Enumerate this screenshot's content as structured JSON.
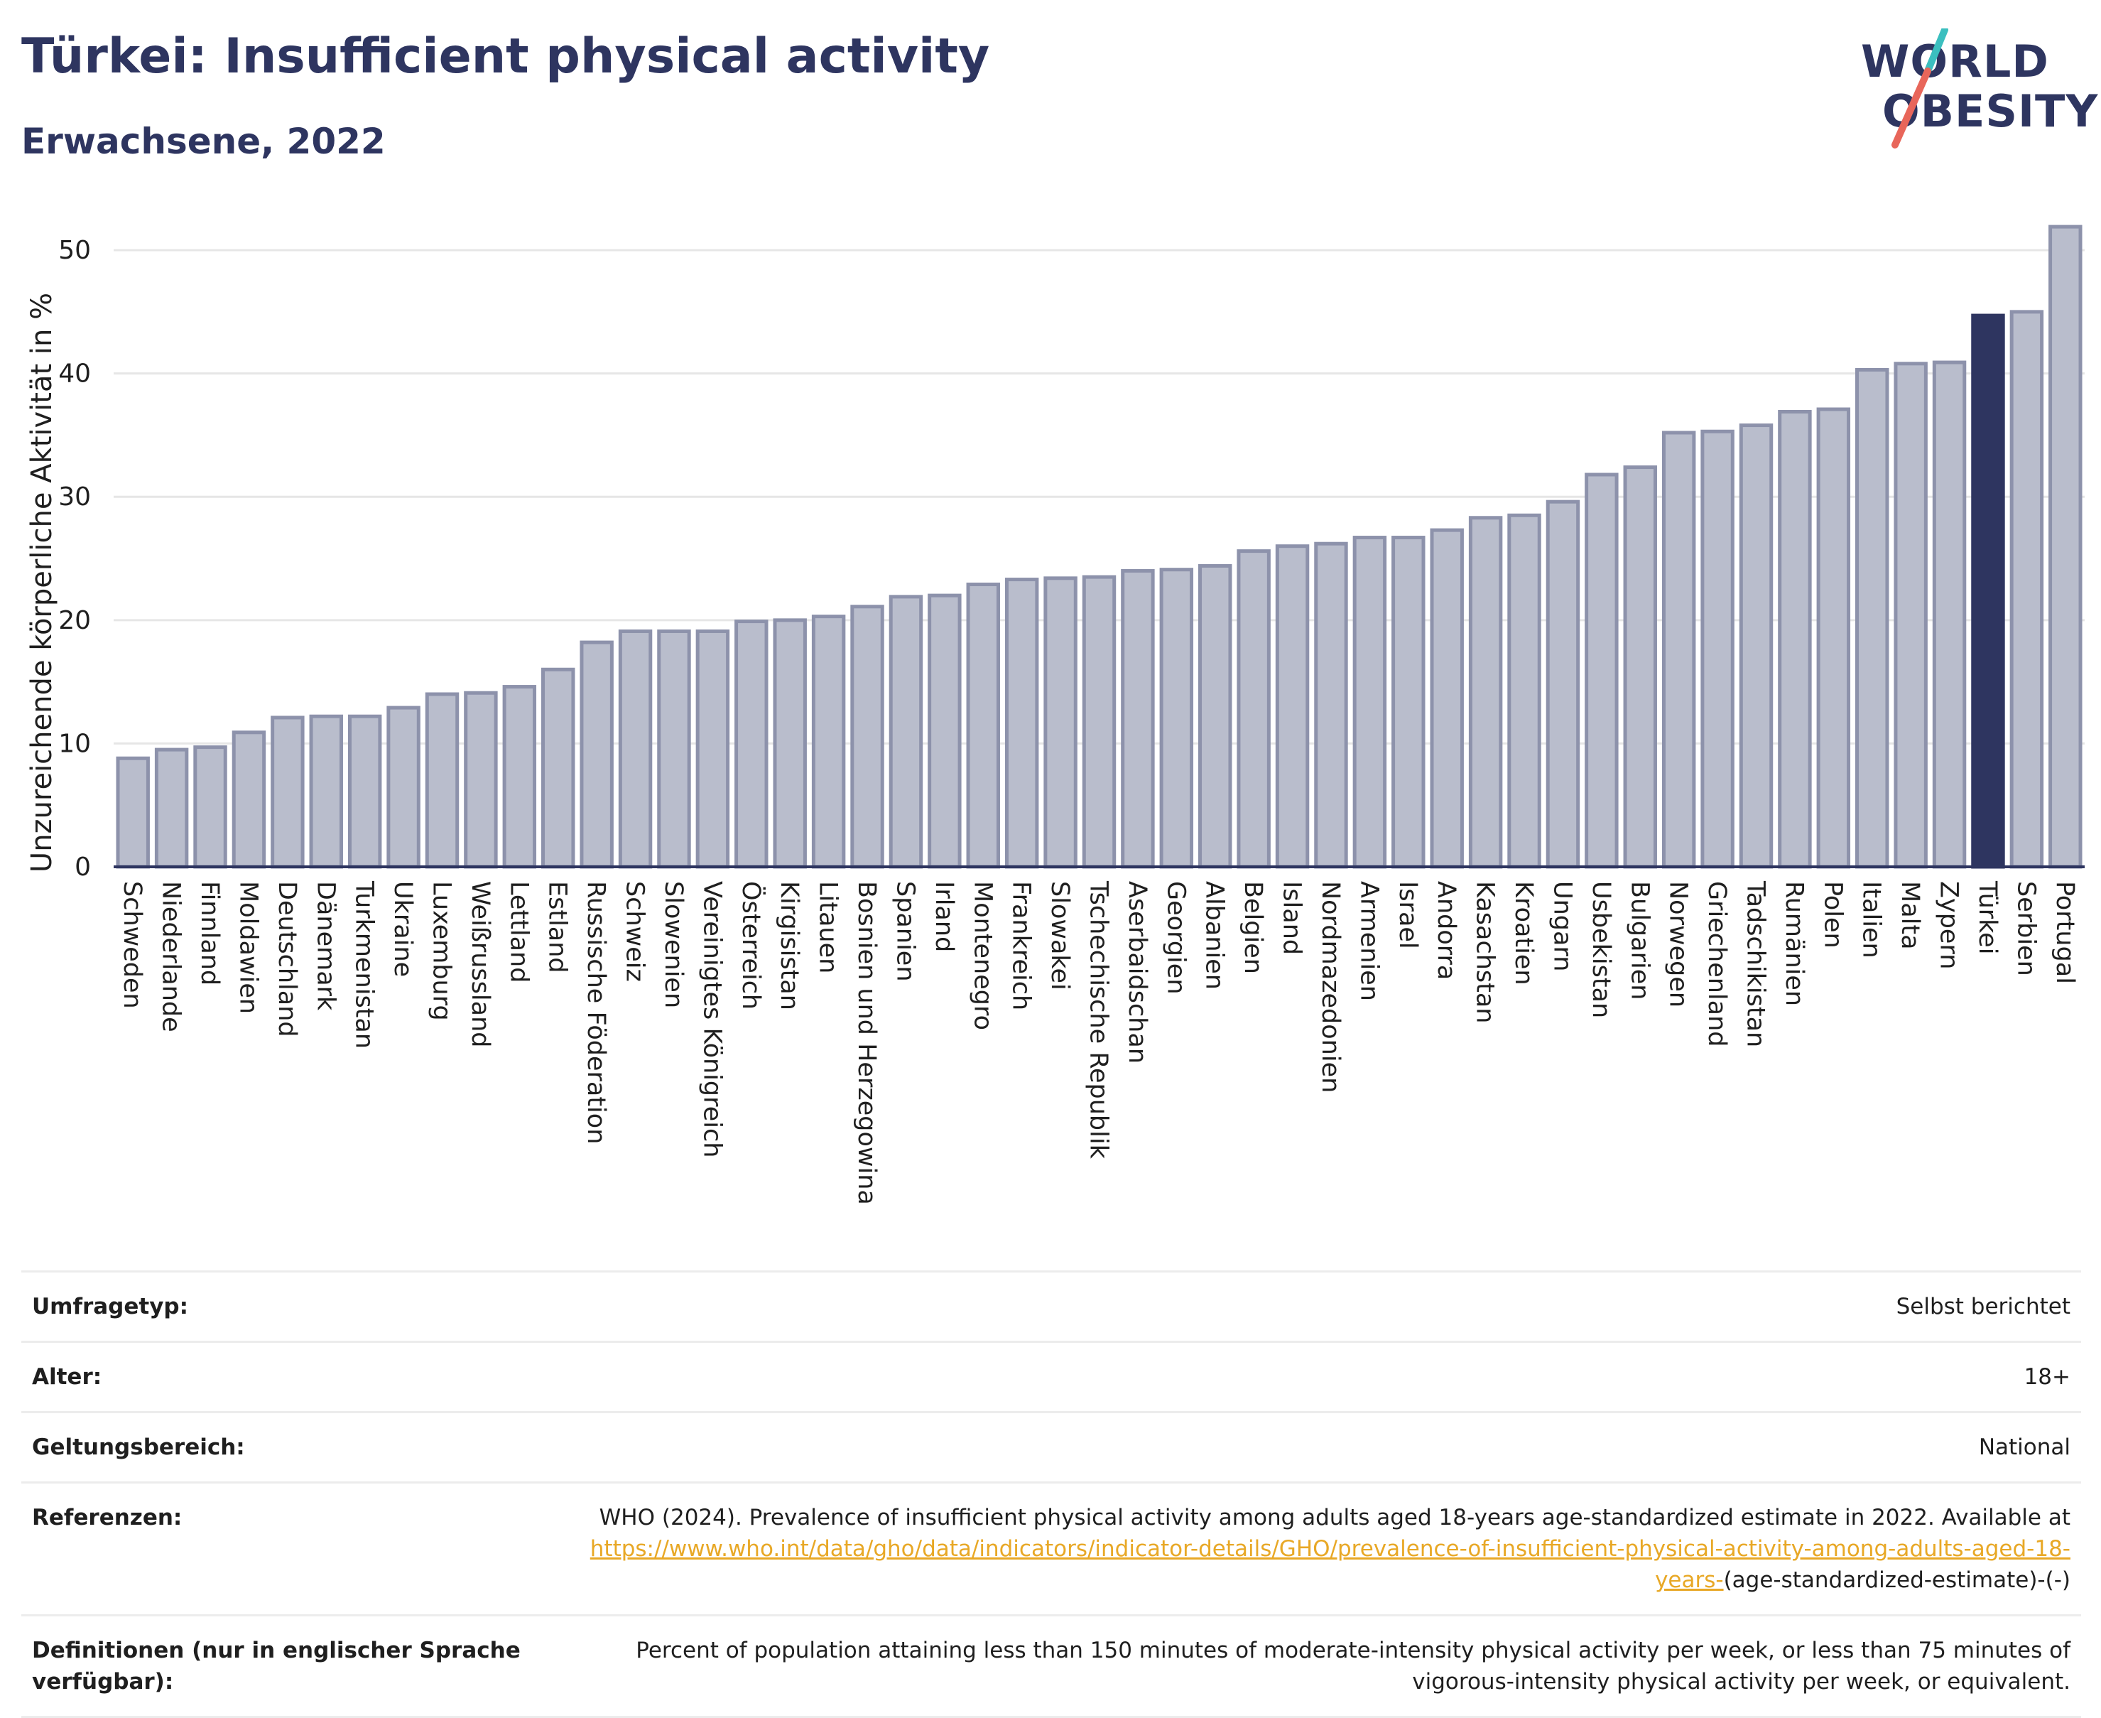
{
  "header": {
    "title": "Türkei: Insufficient physical activity",
    "subtitle": "Erwachsene, 2022"
  },
  "logo": {
    "line1": "WORLD",
    "line2": "OBESITY",
    "colors": {
      "text": "#2e3560",
      "slash_top": "#3bbfbf",
      "slash_bottom": "#e8665a"
    }
  },
  "chart_data": {
    "type": "bar",
    "ylabel": "Unzureichende körperliche Aktivität in %",
    "xlabel": "",
    "ylim": [
      0,
      53
    ],
    "yticks": [
      0,
      10,
      20,
      30,
      40,
      50
    ],
    "grid": true,
    "highlight": "Türkei",
    "colors": {
      "bar": "#b9bdcc",
      "bar_edge": "#8d92ab",
      "highlight": "#2e3560",
      "grid": "#e6e6e6",
      "axis": "#2e3560"
    },
    "categories": [
      "Schweden",
      "Niederlande",
      "Finnland",
      "Moldawien",
      "Deutschland",
      "Dänemark",
      "Turkmenistan",
      "Ukraine",
      "Luxemburg",
      "Weißrussland",
      "Lettland",
      "Estland",
      "Russische Föderation",
      "Schweiz",
      "Slowenien",
      "Vereinigtes Königreich",
      "Österreich",
      "Kirgisistan",
      "Litauen",
      "Bosnien und Herzegowina",
      "Spanien",
      "Irland",
      "Montenegro",
      "Frankreich",
      "Slowakei",
      "Tschechische Republik",
      "Aserbaidschan",
      "Georgien",
      "Albanien",
      "Belgien",
      "Island",
      "Nordmazedonien",
      "Armenien",
      "Israel",
      "Andorra",
      "Kasachstan",
      "Kroatien",
      "Ungarn",
      "Usbekistan",
      "Bulgarien",
      "Norwegen",
      "Griechenland",
      "Tadschikistan",
      "Rumänien",
      "Polen",
      "Italien",
      "Malta",
      "Zypern",
      "Türkei",
      "Serbien",
      "Portugal"
    ],
    "values": [
      8.8,
      9.5,
      9.7,
      10.9,
      12.1,
      12.2,
      12.2,
      12.9,
      14.0,
      14.1,
      14.6,
      16.0,
      18.2,
      19.1,
      19.1,
      19.1,
      19.9,
      20.0,
      20.3,
      21.1,
      21.9,
      22.0,
      22.9,
      23.3,
      23.4,
      23.5,
      24.0,
      24.1,
      24.4,
      25.6,
      26.0,
      26.2,
      26.7,
      26.7,
      27.3,
      28.3,
      28.5,
      29.6,
      31.8,
      32.4,
      35.2,
      35.3,
      35.8,
      36.9,
      37.1,
      40.3,
      40.8,
      40.9,
      44.7,
      45.0,
      51.9
    ]
  },
  "meta": {
    "rows": [
      {
        "label": "Umfragetyp:",
        "value": "Selbst berichtet"
      },
      {
        "label": "Alter:",
        "value": "18+"
      },
      {
        "label": "Geltungsbereich:",
        "value": "National"
      }
    ],
    "references": {
      "label": "Referenzen:",
      "text_before": "WHO (2024). Prevalence of insufficient physical activity among adults aged 18-years age-standardized estimate in 2022. Available at",
      "link": "https://www.who.int/data/gho/data/indicators/indicator-details/GHO/prevalence-of-insufficient-physical-activity-among-adults-aged-18-years-",
      "text_after": "(age-standardized-estimate)-(-)"
    },
    "definitions": {
      "label": "Definitionen (nur in englischer Sprache verfügbar):",
      "value": "Percent of population attaining less than 150 minutes of moderate-intensity physical activity per week, or less than 75 minutes of vigorous-intensity physical activity per week, or equivalent."
    }
  }
}
